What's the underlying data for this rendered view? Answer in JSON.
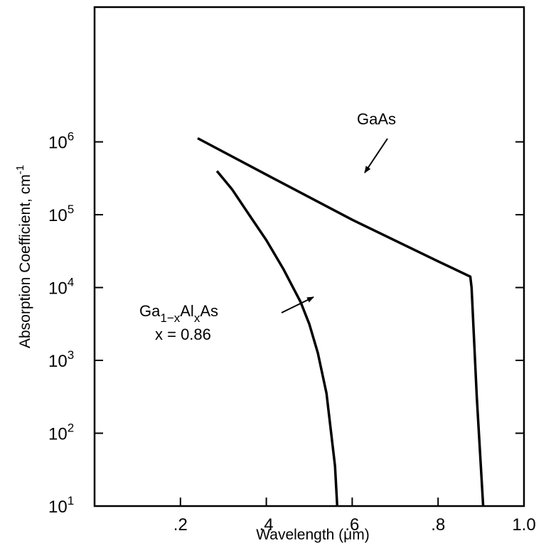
{
  "chart_data": {
    "type": "line",
    "title": "",
    "xlabel": "Wavelength (μm)",
    "ylabel": "Absorption Coefficient, cm⁻¹",
    "xlim": [
      0,
      1.0
    ],
    "ylim_exponent": [
      1,
      7
    ],
    "yscale": "log",
    "grid": false,
    "x_ticks": [
      {
        "value": 0.2,
        "label": ".2"
      },
      {
        "value": 0.4,
        "label": ".4"
      },
      {
        "value": 0.6,
        "label": ".6"
      },
      {
        "value": 0.8,
        "label": ".8"
      },
      {
        "value": 1.0,
        "label": "1.0"
      }
    ],
    "y_ticks": [
      {
        "exp": 1,
        "base": "10",
        "sup": "1"
      },
      {
        "exp": 2,
        "base": "10",
        "sup": "2"
      },
      {
        "exp": 3,
        "base": "10",
        "sup": "3"
      },
      {
        "exp": 4,
        "base": "10",
        "sup": "4"
      },
      {
        "exp": 5,
        "base": "10",
        "sup": "5"
      },
      {
        "exp": 6,
        "base": "10",
        "sup": "6"
      }
    ],
    "series": [
      {
        "name": "GaAs",
        "x": [
          0.24,
          0.4,
          0.6,
          0.8,
          0.875,
          0.878,
          0.89,
          0.905
        ],
        "log10_y": [
          6.05,
          5.55,
          4.93,
          4.36,
          4.15,
          4.0,
          2.5,
          1.0
        ]
      },
      {
        "name": "Ga1−xAlxAs, x = 0.86",
        "x": [
          0.285,
          0.32,
          0.36,
          0.4,
          0.44,
          0.48,
          0.5,
          0.52,
          0.54,
          0.56,
          0.565
        ],
        "log10_y": [
          5.6,
          5.35,
          5.0,
          4.65,
          4.25,
          3.8,
          3.5,
          3.1,
          2.55,
          1.55,
          1.0
        ]
      }
    ],
    "annotations": {
      "gaas": {
        "text": "GaAs"
      },
      "gaalas": {
        "main": "Ga",
        "sub1": "1−x",
        "mid": "Al",
        "sub2": "x",
        "tail": "As",
        "line2": "x = 0.86"
      }
    }
  }
}
